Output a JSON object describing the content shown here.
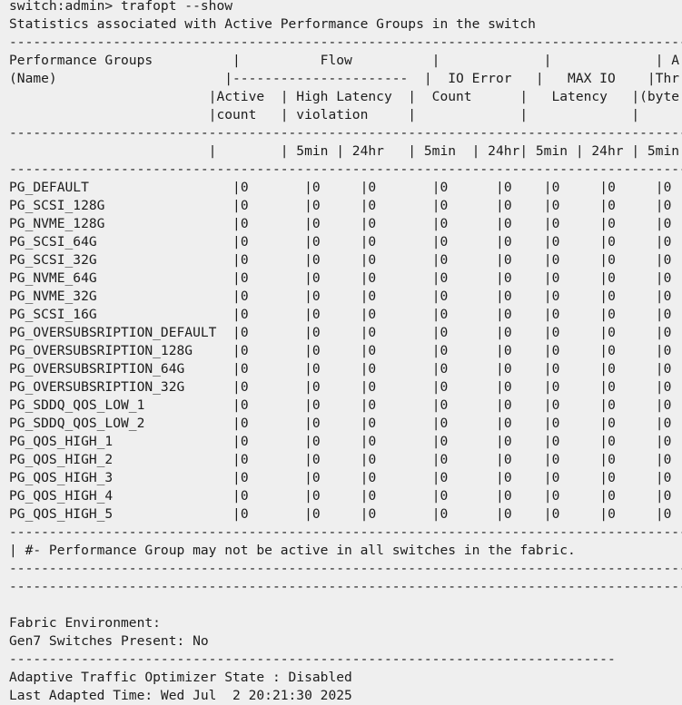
{
  "command": "switch:admin> trafopt --show",
  "description": "Statistics associated with Active Performance Groups in the switch",
  "separator": "--------------------------------------------------------------------------------------------",
  "short_separator": "----------------------------------------------------------------------------",
  "header_lines": [
    "Performance Groups          |          Flow          |             |             | A",
    "(Name)                     |----------------------  |  IO Error   |   MAX IO    |Thr",
    "                         |Active  | High Latency  |  Count      |   Latency   |(byte",
    "                         |count   | violation     |             |             |"
  ],
  "units_line": "                         |        | 5min | 24hr   | 5min  | 24hr| 5min | 24hr | 5min",
  "rows": [
    {
      "name": "PG_DEFAULT",
      "values": [
        "0",
        "0",
        "0",
        "0",
        "0",
        "0",
        "0",
        "0"
      ]
    },
    {
      "name": "PG_SCSI_128G",
      "values": [
        "0",
        "0",
        "0",
        "0",
        "0",
        "0",
        "0",
        "0"
      ]
    },
    {
      "name": "PG_NVME_128G",
      "values": [
        "0",
        "0",
        "0",
        "0",
        "0",
        "0",
        "0",
        "0"
      ]
    },
    {
      "name": "PG_SCSI_64G",
      "values": [
        "0",
        "0",
        "0",
        "0",
        "0",
        "0",
        "0",
        "0"
      ]
    },
    {
      "name": "PG_SCSI_32G",
      "values": [
        "0",
        "0",
        "0",
        "0",
        "0",
        "0",
        "0",
        "0"
      ]
    },
    {
      "name": "PG_NVME_64G",
      "values": [
        "0",
        "0",
        "0",
        "0",
        "0",
        "0",
        "0",
        "0"
      ]
    },
    {
      "name": "PG_NVME_32G",
      "values": [
        "0",
        "0",
        "0",
        "0",
        "0",
        "0",
        "0",
        "0"
      ]
    },
    {
      "name": "PG_SCSI_16G",
      "values": [
        "0",
        "0",
        "0",
        "0",
        "0",
        "0",
        "0",
        "0"
      ]
    },
    {
      "name": "PG_OVERSUBSRIPTION_DEFAULT",
      "values": [
        "0",
        "0",
        "0",
        "0",
        "0",
        "0",
        "0",
        "0"
      ]
    },
    {
      "name": "PG_OVERSUBSRIPTION_128G",
      "values": [
        "0",
        "0",
        "0",
        "0",
        "0",
        "0",
        "0",
        "0"
      ]
    },
    {
      "name": "PG_OVERSUBSRIPTION_64G",
      "values": [
        "0",
        "0",
        "0",
        "0",
        "0",
        "0",
        "0",
        "0"
      ]
    },
    {
      "name": "PG_OVERSUBSRIPTION_32G",
      "values": [
        "0",
        "0",
        "0",
        "0",
        "0",
        "0",
        "0",
        "0"
      ]
    },
    {
      "name": "PG_SDDQ_QOS_LOW_1",
      "values": [
        "0",
        "0",
        "0",
        "0",
        "0",
        "0",
        "0",
        "0"
      ]
    },
    {
      "name": "PG_SDDQ_QOS_LOW_2",
      "values": [
        "0",
        "0",
        "0",
        "0",
        "0",
        "0",
        "0",
        "0"
      ]
    },
    {
      "name": "PG_QOS_HIGH_1",
      "values": [
        "0",
        "0",
        "0",
        "0",
        "0",
        "0",
        "0",
        "0"
      ]
    },
    {
      "name": "PG_QOS_HIGH_2",
      "values": [
        "0",
        "0",
        "0",
        "0",
        "0",
        "0",
        "0",
        "0"
      ]
    },
    {
      "name": "PG_QOS_HIGH_3",
      "values": [
        "0",
        "0",
        "0",
        "0",
        "0",
        "0",
        "0",
        "0"
      ]
    },
    {
      "name": "PG_QOS_HIGH_4",
      "values": [
        "0",
        "0",
        "0",
        "0",
        "0",
        "0",
        "0",
        "0"
      ]
    },
    {
      "name": "PG_QOS_HIGH_5",
      "values": [
        "0",
        "0",
        "0",
        "0",
        "0",
        "0",
        "0",
        "0"
      ]
    }
  ],
  "note": "| #- Performance Group may not be active in all switches in the fabric.",
  "fabric_env_label": "Fabric Environment:",
  "gen7_line": "Gen7 Switches Present: No",
  "ato_state_line": "Adaptive Traffic Optimizer State : Disabled",
  "last_adapted_line": "Last Adapted Time: Wed Jul  2 20:21:30 2025"
}
